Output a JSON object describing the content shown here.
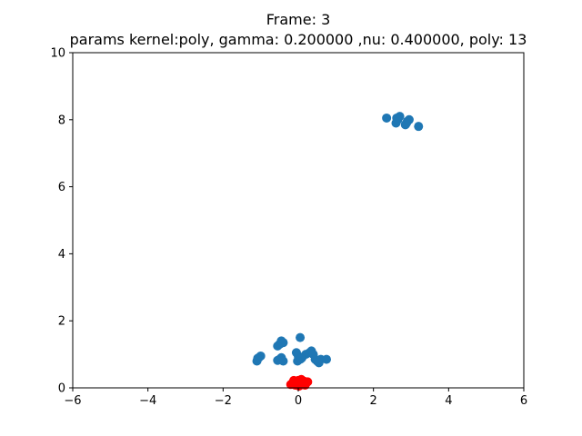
{
  "chart_data": {
    "type": "scatter",
    "title": "Frame: 3",
    "subtitle": "params kernel:poly, gamma: 0.200000 ,nu: 0.400000, poly: 13",
    "xlabel": "",
    "ylabel": "",
    "xlim": [
      -6,
      6
    ],
    "ylim": [
      0,
      10
    ],
    "grid": false,
    "x_ticks": [
      {
        "value": -6,
        "label": "−6"
      },
      {
        "value": -4,
        "label": "−4"
      },
      {
        "value": -2,
        "label": "−2"
      },
      {
        "value": 0,
        "label": "0"
      },
      {
        "value": 2,
        "label": "2"
      },
      {
        "value": 4,
        "label": "4"
      },
      {
        "value": 6,
        "label": "6"
      }
    ],
    "y_ticks": [
      {
        "value": 0,
        "label": "0"
      },
      {
        "value": 2,
        "label": "2"
      },
      {
        "value": 4,
        "label": "4"
      },
      {
        "value": 6,
        "label": "6"
      },
      {
        "value": 8,
        "label": "8"
      },
      {
        "value": 10,
        "label": "10"
      }
    ],
    "series": [
      {
        "color": "#1f77b4",
        "points": [
          [
            2.35,
            8.05
          ],
          [
            2.6,
            7.9
          ],
          [
            2.65,
            8.0
          ],
          [
            2.7,
            8.1
          ],
          [
            2.85,
            7.85
          ],
          [
            2.9,
            7.95
          ],
          [
            2.95,
            8.0
          ],
          [
            3.2,
            7.8
          ],
          [
            2.62,
            8.05
          ],
          [
            2.88,
            7.9
          ],
          [
            0.05,
            1.5
          ],
          [
            -0.5,
            1.3
          ],
          [
            -0.45,
            1.4
          ],
          [
            -0.4,
            1.35
          ],
          [
            -0.55,
            1.25
          ],
          [
            -1.1,
            0.8
          ],
          [
            -1.05,
            0.9
          ],
          [
            -1.0,
            0.95
          ],
          [
            -1.08,
            0.88
          ],
          [
            -0.5,
            0.85
          ],
          [
            -0.45,
            0.9
          ],
          [
            -0.4,
            0.8
          ],
          [
            -0.55,
            0.82
          ],
          [
            -0.05,
            1.05
          ],
          [
            0.0,
            0.95
          ],
          [
            0.05,
            0.85
          ],
          [
            -0.02,
            0.8
          ],
          [
            0.1,
            0.9
          ],
          [
            0.2,
            1.0
          ],
          [
            0.3,
            1.05
          ],
          [
            0.35,
            1.1
          ],
          [
            0.4,
            1.0
          ],
          [
            0.45,
            0.85
          ],
          [
            0.5,
            0.8
          ],
          [
            0.55,
            0.75
          ],
          [
            0.6,
            0.85
          ],
          [
            0.75,
            0.85
          ],
          [
            0.08,
            0.88
          ]
        ]
      },
      {
        "color": "#ff0000",
        "points": [
          [
            -0.2,
            0.1
          ],
          [
            -0.15,
            0.15
          ],
          [
            -0.1,
            0.2
          ],
          [
            -0.05,
            0.12
          ],
          [
            0.0,
            0.22
          ],
          [
            0.05,
            0.15
          ],
          [
            0.1,
            0.1
          ],
          [
            0.15,
            0.2
          ],
          [
            0.2,
            0.12
          ],
          [
            0.25,
            0.18
          ],
          [
            -0.08,
            0.08
          ],
          [
            0.02,
            0.05
          ],
          [
            0.08,
            0.25
          ],
          [
            -0.12,
            0.22
          ],
          [
            0.18,
            0.08
          ]
        ]
      }
    ]
  }
}
